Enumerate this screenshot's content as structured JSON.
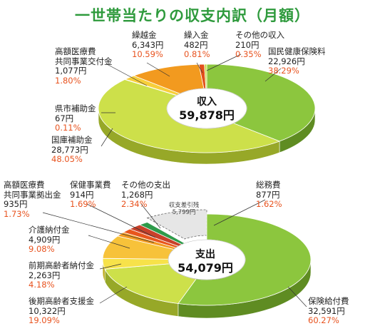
{
  "title": "一世帯当たりの収支内訳（月額）",
  "colors": {
    "pct": "#e8531f",
    "title": "#2e9a3c"
  },
  "chart_data": [
    {
      "type": "pie",
      "center_title": "収入",
      "center_value": "59,878円",
      "slices": [
        {
          "name": "国民健康保険料",
          "value": 22926,
          "amount": "22,926円",
          "pct": "38.29%",
          "color": "#8cc63e",
          "dark": "#5f8c22"
        },
        {
          "name": "国庫補助金",
          "value": 28773,
          "amount": "28,773円",
          "pct": "48.05%",
          "color": "#cde04a",
          "dark": "#97a828"
        },
        {
          "name": "県市補助金",
          "value": 67,
          "amount": "67円",
          "pct": "0.11%",
          "color": "#e6ec6a",
          "dark": "#b0b640"
        },
        {
          "name": "高額医療費\n共同事業交付金",
          "value": 1077,
          "amount": "1,077円",
          "pct": "1.80%",
          "color": "#f7cf3a",
          "dark": "#c29a14"
        },
        {
          "name": "繰越金",
          "value": 6343,
          "amount": "6,343円",
          "pct": "10.59%",
          "color": "#f29a1f",
          "dark": "#b86a08"
        },
        {
          "name": "繰入金",
          "value": 482,
          "amount": "482円",
          "pct": "0.81%",
          "color": "#e24f1a",
          "dark": "#a8330c"
        },
        {
          "name": "その他の収入",
          "value": 210,
          "amount": "210円",
          "pct": "0.35%",
          "color": "#c9d94a",
          "dark": "#93a12a"
        }
      ]
    },
    {
      "type": "pie",
      "center_title": "支出",
      "center_value": "54,079円",
      "gap_label": "収支差引残\n5,799円",
      "gap_value": 5799,
      "slices": [
        {
          "name": "保険給付費",
          "value": 32591,
          "amount": "32,591円",
          "pct": "60.27%",
          "color": "#8cc63e",
          "dark": "#5f8c22"
        },
        {
          "name": "後期高齢者支援金",
          "value": 10322,
          "amount": "10,322円",
          "pct": "19.09%",
          "color": "#cde04a",
          "dark": "#97a828"
        },
        {
          "name": "前期高齢者納付金",
          "value": 2263,
          "amount": "2,263円",
          "pct": "4.18%",
          "color": "#f7e24a",
          "dark": "#c0ad22"
        },
        {
          "name": "介護納付金",
          "value": 4909,
          "amount": "4,909円",
          "pct": "9.08%",
          "color": "#f7c23a",
          "dark": "#c08e14"
        },
        {
          "name": "高額医療費\n共同事業拠出金",
          "value": 935,
          "amount": "935円",
          "pct": "1.73%",
          "color": "#f29a1f",
          "dark": "#b86a08"
        },
        {
          "name": "保健事業費",
          "value": 914,
          "amount": "914円",
          "pct": "1.69%",
          "color": "#e8561c",
          "dark": "#a8360c"
        },
        {
          "name": "その他の支出",
          "value": 1268,
          "amount": "1,268円",
          "pct": "2.34%",
          "color": "#c8412a",
          "dark": "#8a2614"
        },
        {
          "name": "総務費",
          "value": 877,
          "amount": "877円",
          "pct": "1.62%",
          "color": "#2e9a4a",
          "dark": "#1c6a2e"
        }
      ]
    }
  ]
}
